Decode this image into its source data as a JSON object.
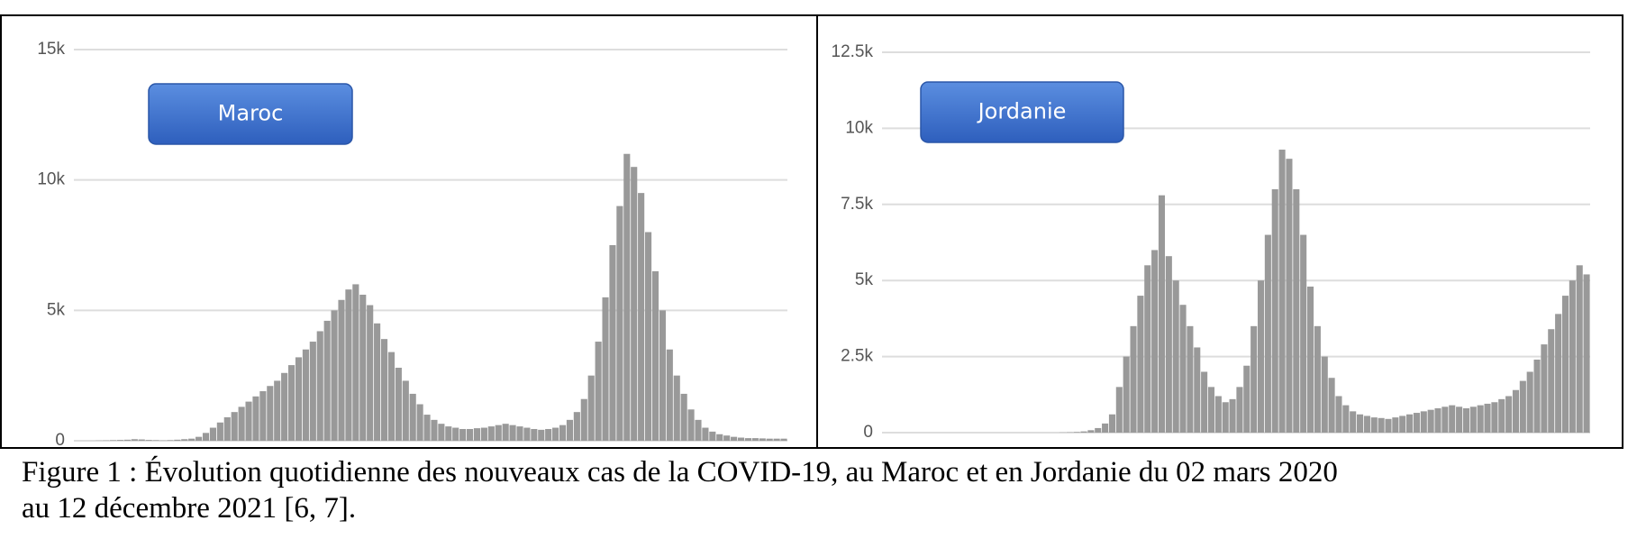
{
  "chart_data": [
    {
      "type": "bar",
      "label": "Maroc",
      "color": "#999999",
      "grid": true,
      "ylim": [
        0,
        15000
      ],
      "yticks": [
        0,
        {
          "value": 5000,
          "label": "5k"
        },
        {
          "value": 10000,
          "label": "10k"
        },
        {
          "value": 15000,
          "label": "15k"
        }
      ],
      "values": [
        0,
        0,
        0,
        5,
        10,
        20,
        30,
        40,
        60,
        50,
        30,
        20,
        10,
        20,
        40,
        60,
        80,
        150,
        300,
        500,
        700,
        900,
        1100,
        1300,
        1500,
        1700,
        1900,
        2100,
        2300,
        2600,
        2900,
        3200,
        3500,
        3800,
        4200,
        4600,
        5000,
        5400,
        5800,
        6000,
        5600,
        5200,
        4500,
        3900,
        3400,
        2800,
        2300,
        1800,
        1400,
        1000,
        800,
        650,
        550,
        500,
        450,
        450,
        480,
        500,
        550,
        600,
        650,
        600,
        550,
        500,
        450,
        420,
        450,
        500,
        600,
        800,
        1100,
        1600,
        2500,
        3800,
        5500,
        7500,
        9000,
        11000,
        10500,
        9500,
        8000,
        6500,
        5000,
        3500,
        2500,
        1800,
        1200,
        800,
        500,
        350,
        250,
        200,
        150,
        120,
        100,
        100,
        90,
        80,
        80,
        80
      ]
    },
    {
      "type": "bar",
      "label": "Jordanie",
      "color": "#999999",
      "grid": true,
      "ylim": [
        0,
        12500
      ],
      "yticks": [
        0,
        {
          "value": 2500,
          "label": "2.5k"
        },
        {
          "value": 5000,
          "label": "5k"
        },
        {
          "value": 7500,
          "label": "7.5k"
        },
        {
          "value": 10000,
          "label": "10k"
        },
        {
          "value": 12500,
          "label": "12.5k"
        }
      ],
      "values": [
        0,
        0,
        0,
        0,
        0,
        0,
        0,
        0,
        0,
        0,
        0,
        0,
        0,
        0,
        0,
        0,
        0,
        0,
        0,
        0,
        0,
        0,
        0,
        0,
        0,
        5,
        10,
        20,
        40,
        80,
        150,
        300,
        600,
        1500,
        2500,
        3500,
        4500,
        5500,
        6000,
        7800,
        5800,
        5000,
        4200,
        3500,
        2800,
        2000,
        1500,
        1200,
        1000,
        1100,
        1500,
        2200,
        3500,
        5000,
        6500,
        8000,
        9300,
        9000,
        8000,
        6500,
        4800,
        3500,
        2500,
        1800,
        1200,
        900,
        700,
        600,
        550,
        500,
        480,
        450,
        500,
        550,
        600,
        650,
        700,
        750,
        800,
        850,
        900,
        850,
        800,
        850,
        900,
        950,
        1000,
        1100,
        1200,
        1400,
        1700,
        2000,
        2400,
        2900,
        3400,
        3900,
        4500,
        5000,
        5500,
        5200
      ]
    }
  ],
  "caption": [
    "Figure 1 : Évolution quotidienne des nouveaux cas de la COVID-19, au Maroc et en Jordanie du 02 mars 2020",
    "au 12 décembre 2021 [6, 7]."
  ]
}
